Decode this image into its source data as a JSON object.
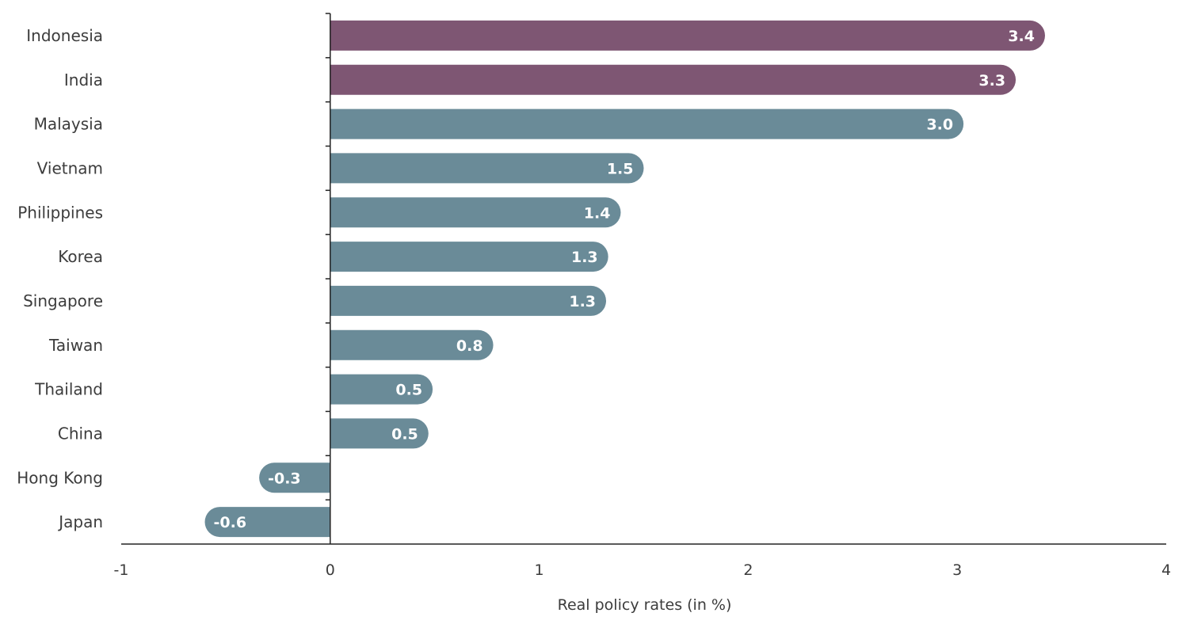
{
  "chart_data": {
    "type": "bar",
    "orientation": "horizontal",
    "title": "",
    "xlabel": "Real policy rates (in %)",
    "ylabel": "",
    "xlim": [
      -1,
      4
    ],
    "x_ticks": [
      "-1",
      "0",
      "1",
      "2",
      "3",
      "4"
    ],
    "grid": false,
    "legend": "none",
    "categories": [
      "Indonesia",
      "India",
      "Malaysia",
      "Vietnam",
      "Philippines",
      "Korea",
      "Singapore",
      "Taiwan",
      "Thailand",
      "China",
      "Hong Kong",
      "Japan"
    ],
    "values": [
      3.42,
      3.28,
      3.03,
      1.5,
      1.39,
      1.33,
      1.32,
      0.78,
      0.49,
      0.47,
      -0.34,
      -0.6
    ],
    "data_labels": [
      "3.4",
      "3.3",
      "3.0",
      "1.5",
      "1.4",
      "1.3",
      "1.3",
      "0.8",
      "0.5",
      "0.5",
      "-0.3",
      "-0.6"
    ],
    "highlight_color": "#7e5673",
    "base_color": "#6a8b98",
    "highlighted": [
      "Indonesia",
      "India"
    ],
    "axis_color": "#222222"
  }
}
